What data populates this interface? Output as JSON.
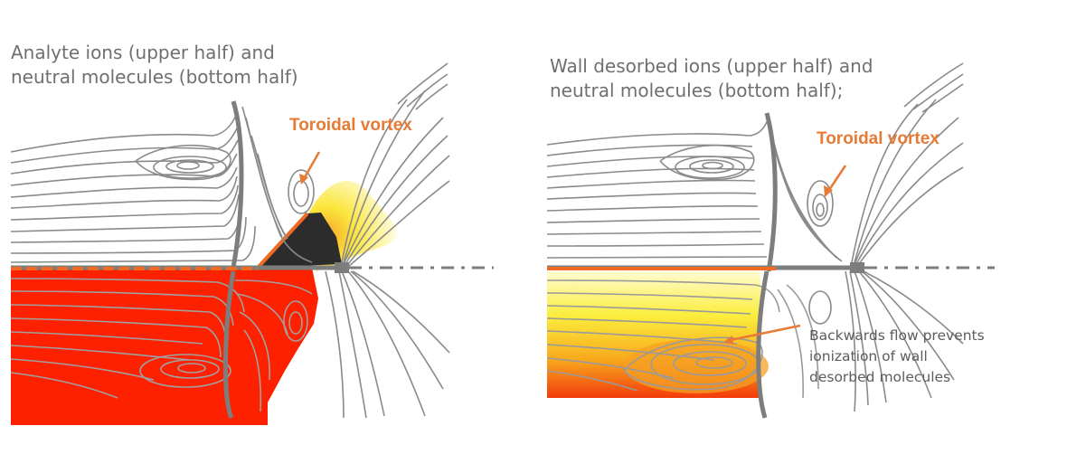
{
  "left_panel": {
    "caption_line1": "Analyte ions (upper half) and",
    "caption_line2": "neutral molecules (bottom half)",
    "vortex_label": "Toroidal vortex"
  },
  "right_panel": {
    "caption_line1": "Wall desorbed ions (upper half) and",
    "caption_line2": "neutral molecules (bottom half);",
    "vortex_label": "Toroidal vortex",
    "annotation_line1": "Backwards flow prevents",
    "annotation_line2": "ionization of wall",
    "annotation_line3": "desorbed molecules"
  },
  "colors": {
    "accent_orange": "#e77a35",
    "streamline_gray": "#8a8a8a",
    "wall_gray": "#7d7d7d",
    "hot_red": "#fe2100",
    "hot_yellow": "#fdf24a"
  }
}
